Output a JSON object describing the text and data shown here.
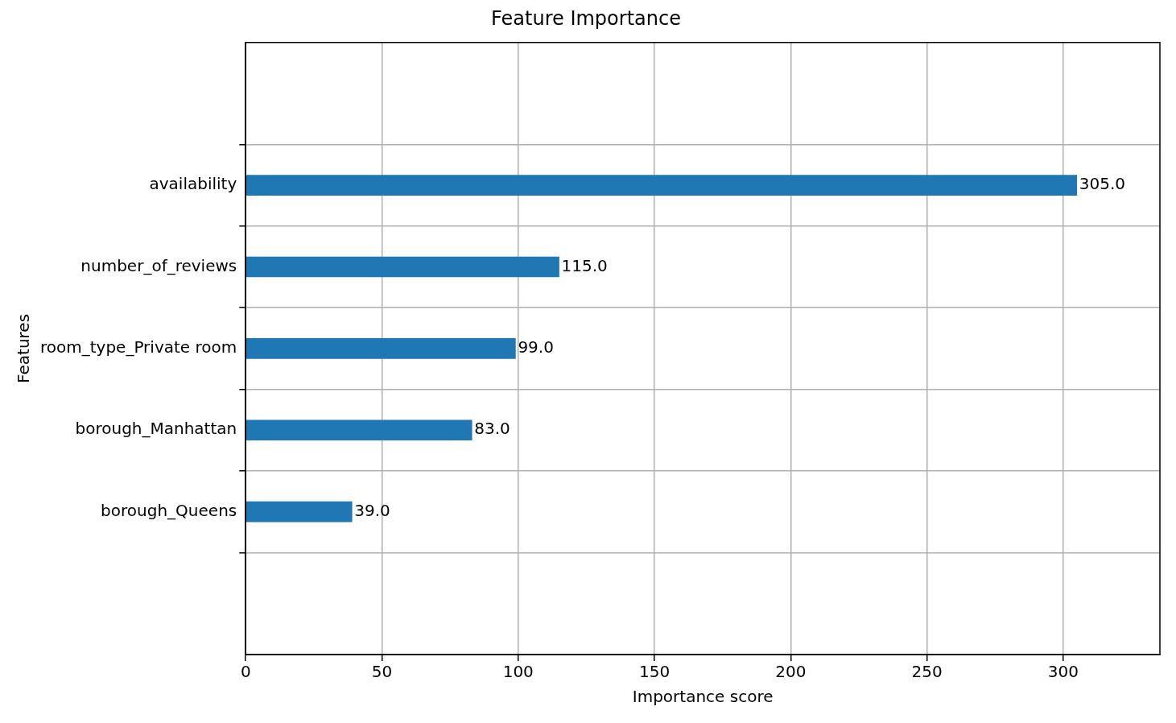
{
  "chart_data": {
    "type": "bar",
    "orientation": "horizontal",
    "title": "Feature Importance",
    "xlabel": "Importance score",
    "ylabel": "Features",
    "categories": [
      "availability",
      "number_of_reviews",
      "room_type_Private room",
      "borough_Manhattan",
      "borough_Queens"
    ],
    "values": [
      305,
      115,
      99,
      83,
      39
    ],
    "value_labels": [
      "305.0",
      "115.0",
      "99.0",
      "83.0",
      "39.0"
    ],
    "color": "#1f77b4",
    "xlim": [
      0,
      335.5
    ],
    "xticks": [
      0,
      50,
      100,
      150,
      200,
      250,
      300
    ],
    "grid": true
  }
}
